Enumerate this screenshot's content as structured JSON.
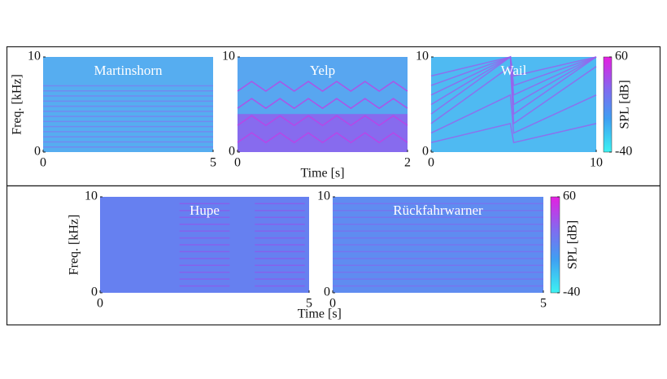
{
  "chart_data": [
    {
      "type": "heatmap",
      "title": "Martinshorn",
      "ylabel": "Freq. [kHz]",
      "xlim": [
        0,
        5
      ],
      "xticks": [
        0,
        5
      ],
      "ylim": [
        0,
        10
      ],
      "yticks": [
        0,
        10
      ]
    },
    {
      "type": "heatmap",
      "title": "Yelp",
      "xlabel": "Time [s]",
      "xlim": [
        0,
        2
      ],
      "xticks": [
        0,
        2
      ],
      "ylim": [
        0,
        10
      ],
      "yticks": [
        0,
        10
      ]
    },
    {
      "type": "heatmap",
      "title": "Wail",
      "xlim": [
        0,
        10
      ],
      "xticks": [
        0,
        10
      ],
      "ylim": [
        0,
        10
      ],
      "yticks": [
        0,
        10
      ],
      "colorbar": {
        "label": "SPL [dB]",
        "lim": [
          -40,
          60
        ],
        "ticks": [
          -40,
          60
        ]
      }
    },
    {
      "type": "heatmap",
      "title": "Hupe",
      "ylabel": "Freq. [kHz]",
      "xlabel": "Time [s]",
      "xlim": [
        0,
        5
      ],
      "xticks": [
        0,
        5
      ],
      "ylim": [
        0,
        10
      ],
      "yticks": [
        0,
        10
      ]
    },
    {
      "type": "heatmap",
      "title": "Rückfahrwarner",
      "xlim": [
        0,
        5
      ],
      "xticks": [
        0,
        5
      ],
      "ylim": [
        0,
        10
      ],
      "yticks": [
        0,
        10
      ],
      "colorbar": {
        "label": "SPL [dB]",
        "lim": [
          -40,
          60
        ],
        "ticks": [
          -40,
          60
        ]
      }
    }
  ]
}
